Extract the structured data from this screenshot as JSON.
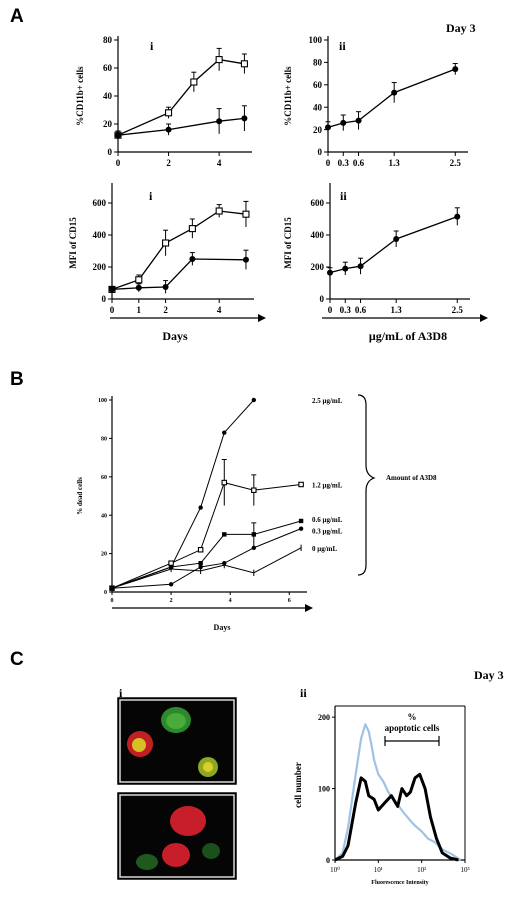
{
  "panel_labels": {
    "A": "A",
    "B": "B",
    "C": "C"
  },
  "annotations": {
    "day3_A": "Day 3",
    "day3_C": "Day 3",
    "days_A": "Days",
    "conc_A": "μg/mL  of  A3D8",
    "days_B": "Days",
    "amount": "Amount of A3D8",
    "pct_apoptotic_1": "%",
    "pct_apoptotic_2": "apoptotic cells",
    "C_i": "i",
    "C_ii": "ii"
  },
  "colors": {
    "open_series": "#ffffff",
    "filled_series": "#000000",
    "histogram_control": "#9ec3e6",
    "histogram_treated": "#000000"
  },
  "chart_data": [
    {
      "id": "A-i-top",
      "type": "line",
      "panel_label": "i",
      "xlabel": "",
      "ylabel": "%CD11b+ cells",
      "xlim": [
        0,
        5.3
      ],
      "ylim": [
        0,
        80
      ],
      "xticks": [
        0,
        2,
        4
      ],
      "yticks": [
        0,
        20,
        40,
        60,
        80
      ],
      "series": [
        {
          "marker": "open-square",
          "x": [
            0,
            2,
            3,
            4,
            5
          ],
          "y": [
            12,
            28,
            50,
            66,
            63
          ],
          "err": [
            3,
            4,
            7,
            8,
            7
          ]
        },
        {
          "marker": "filled-circle",
          "x": [
            0,
            2,
            4,
            5
          ],
          "y": [
            12,
            16,
            22,
            24
          ],
          "err": [
            3,
            4,
            9,
            9
          ]
        }
      ]
    },
    {
      "id": "A-ii-top",
      "type": "line",
      "panel_label": "ii",
      "xlabel": "",
      "ylabel": "%CD11b+ cells",
      "xlim": [
        0,
        2.75
      ],
      "ylim": [
        0,
        100
      ],
      "xticks": [
        0,
        0.3,
        0.6,
        1.3,
        2.5
      ],
      "yticks": [
        0,
        20,
        40,
        60,
        80,
        100
      ],
      "series": [
        {
          "marker": "filled-circle",
          "x": [
            0,
            0.3,
            0.6,
            1.3,
            2.5
          ],
          "y": [
            22,
            26,
            28,
            53,
            74
          ],
          "err": [
            5,
            7,
            8,
            9,
            5
          ]
        }
      ]
    },
    {
      "id": "A-i-bottom",
      "type": "line",
      "panel_label": "i",
      "xlabel": "Days",
      "ylabel": "MFI of CD15",
      "xlim": [
        0,
        5.3
      ],
      "ylim": [
        0,
        700
      ],
      "xticks": [
        0,
        1,
        2,
        4
      ],
      "yticks": [
        0,
        200,
        400,
        600
      ],
      "series": [
        {
          "marker": "open-square",
          "x": [
            0,
            1,
            2,
            3,
            4,
            5
          ],
          "y": [
            60,
            120,
            350,
            440,
            550,
            530
          ],
          "err": [
            15,
            30,
            80,
            60,
            40,
            80
          ]
        },
        {
          "marker": "filled-circle",
          "x": [
            0,
            1,
            2,
            3,
            5
          ],
          "y": [
            60,
            70,
            75,
            250,
            245
          ],
          "err": [
            15,
            25,
            40,
            40,
            60
          ]
        }
      ]
    },
    {
      "id": "A-ii-bottom",
      "type": "line",
      "panel_label": "ii",
      "xlabel": "μg/mL of A3D8",
      "ylabel": "MFI of CD15",
      "xlim": [
        0,
        2.75
      ],
      "ylim": [
        0,
        700
      ],
      "xticks": [
        0,
        0.3,
        0.6,
        1.3,
        2.5
      ],
      "yticks": [
        0,
        200,
        400,
        600
      ],
      "series": [
        {
          "marker": "filled-circle",
          "x": [
            0,
            0.3,
            0.6,
            1.3,
            2.5
          ],
          "y": [
            165,
            190,
            205,
            375,
            515
          ],
          "err": [
            30,
            40,
            50,
            50,
            55
          ]
        }
      ]
    },
    {
      "id": "B",
      "type": "line",
      "xlabel": "Days",
      "ylabel": "% dead cells",
      "xlim": [
        0,
        6.6
      ],
      "ylim": [
        0,
        100
      ],
      "xticks": [
        0,
        2,
        4,
        6
      ],
      "yticks": [
        0,
        20,
        40,
        60,
        80,
        100
      ],
      "series": [
        {
          "name": "2.5 μg/mL",
          "marker": "filled-circle",
          "x": [
            0,
            2,
            3,
            3.8,
            4.8
          ],
          "y": [
            2,
            13,
            44,
            83,
            100
          ],
          "err": [
            0,
            0,
            0,
            0,
            0
          ]
        },
        {
          "name": "1.2 μg/mL",
          "marker": "open-square",
          "x": [
            0,
            2,
            3,
            3.8,
            4.8,
            6.4
          ],
          "y": [
            2,
            15,
            22,
            57,
            53,
            56
          ],
          "err": [
            0,
            0,
            0,
            12,
            8,
            0
          ]
        },
        {
          "name": "0.6 μg/mL",
          "marker": "filled-square",
          "x": [
            0,
            2,
            3,
            3.8,
            4.8,
            6.4
          ],
          "y": [
            2,
            13,
            15,
            30,
            30,
            37
          ],
          "err": [
            0,
            0,
            0,
            0,
            6,
            0
          ]
        },
        {
          "name": "0.3 μg/mL",
          "marker": "filled-circle",
          "x": [
            0,
            2,
            3,
            3.8,
            4.8,
            6.4
          ],
          "y": [
            2,
            4,
            13,
            15,
            23,
            33
          ],
          "err": [
            0,
            0,
            0,
            0,
            0,
            0
          ]
        },
        {
          "name": "0 μg/mL",
          "marker": "tick",
          "x": [
            0,
            2,
            3,
            3.8,
            4.8,
            6.4
          ],
          "y": [
            2,
            12,
            11,
            14,
            10,
            23
          ],
          "err": [
            0,
            0,
            0,
            0,
            0,
            0
          ]
        }
      ]
    },
    {
      "id": "C-ii",
      "type": "area",
      "panel_label": "ii",
      "xlabel": "Fluorescence Intensity",
      "ylabel": "cell number",
      "xscale": "log",
      "xlim": [
        1,
        1000
      ],
      "ylim": [
        0,
        210
      ],
      "xtick_labels": [
        "10⁰",
        "10¹",
        "10²",
        "10³"
      ],
      "yticks": [
        0,
        100,
        200
      ],
      "series": [
        {
          "name": "",
          "color": "#9ec3e6",
          "x": [
            1,
            1.5,
            2,
            3,
            4,
            5,
            6,
            7,
            8,
            10,
            13,
            17,
            22,
            30,
            40,
            55,
            70,
            100,
            140,
            200,
            300,
            500,
            800
          ],
          "y": [
            0,
            10,
            45,
            120,
            170,
            190,
            180,
            160,
            140,
            120,
            110,
            95,
            85,
            75,
            65,
            55,
            48,
            40,
            30,
            25,
            15,
            8,
            0
          ]
        },
        {
          "name": "",
          "color": "#000000",
          "x": [
            1,
            1.5,
            2,
            3,
            4,
            5,
            6,
            8,
            10,
            14,
            20,
            28,
            35,
            45,
            55,
            70,
            90,
            120,
            160,
            220,
            300,
            450,
            700
          ],
          "y": [
            0,
            5,
            20,
            80,
            115,
            110,
            90,
            85,
            70,
            80,
            90,
            75,
            100,
            90,
            95,
            115,
            120,
            100,
            60,
            30,
            10,
            3,
            0
          ]
        }
      ]
    }
  ]
}
